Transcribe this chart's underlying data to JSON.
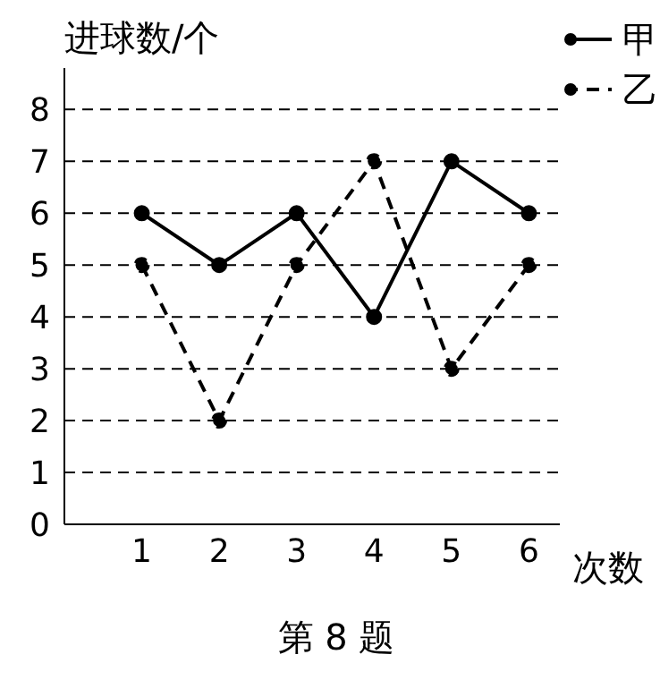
{
  "chart_data": {
    "type": "line",
    "xlabel": "次数",
    "ylabel": "进球数/个",
    "annotations": [
      "第 8 题"
    ],
    "x": [
      1,
      2,
      3,
      4,
      5,
      6
    ],
    "series": [
      {
        "name": "甲",
        "color": "#000000",
        "values": [
          6,
          5,
          6,
          4,
          7,
          6
        ],
        "line_style": "solid"
      },
      {
        "name": "乙",
        "color": "#000000",
        "values": [
          5,
          2,
          5,
          7,
          3,
          5
        ],
        "line_style": "dashed"
      }
    ],
    "xlim": [
      0,
      6.4
    ],
    "xticks": [
      1,
      2,
      3,
      4,
      5,
      6
    ],
    "ylim": [
      0,
      8.8
    ],
    "yticks": [
      0,
      1,
      2,
      3,
      4,
      5,
      6,
      7,
      8
    ],
    "grid": "y",
    "legend": "top right",
    "marker": "circle"
  }
}
